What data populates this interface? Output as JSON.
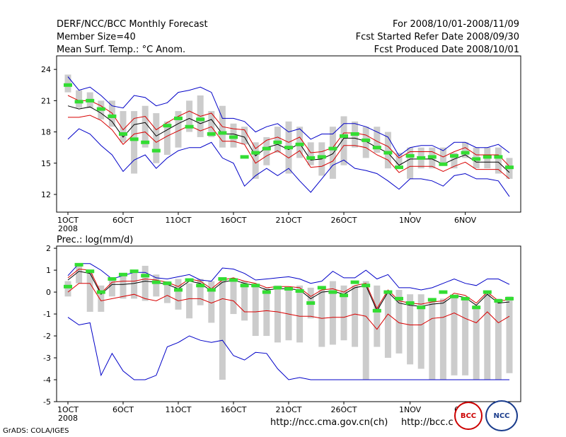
{
  "header": {
    "title": "DERF/NCC/BCC Monthly Forecast",
    "member_size": "Member Size=40",
    "variable": "Mean Surf. Temp.: °C Anom.",
    "period": "For 2008/10/01-2008/11/09",
    "start_date": "Fcst Started Refer Date 2008/09/30",
    "produced_date": "Fcst Produced Date 2008/10/01"
  },
  "colors": {
    "ens_bar": "#cccccc",
    "mean": "#000000",
    "spread": "#d80000",
    "extreme": "#0000c8",
    "median": "#33dd33"
  },
  "footer": {
    "grads": "GrADS: COLA/IGES",
    "url1": "http://ncc.cma.gov.cn(ch)",
    "url2": "http://bcc.c",
    "logo_left": "BCC",
    "logo_right": "NCC"
  },
  "chart_data": [
    {
      "type": "box",
      "name": "temperature",
      "title": "",
      "ylim": [
        10.3,
        25.3
      ],
      "yticks": [
        12,
        15,
        18,
        21,
        24
      ],
      "xlim": [
        1,
        41
      ],
      "xticks": [
        {
          "day": 1,
          "label": "1OCT",
          "sub": "2008"
        },
        {
          "day": 6,
          "label": "6OCT"
        },
        {
          "day": 11,
          "label": "11OCT"
        },
        {
          "day": 16,
          "label": "16OCT"
        },
        {
          "day": 21,
          "label": "21OCT"
        },
        {
          "day": 26,
          "label": "26OCT"
        },
        {
          "day": 32,
          "label": "1NOV"
        },
        {
          "day": 37,
          "label": "6NOV"
        }
      ],
      "series": [
        {
          "name": "bar_low",
          "values": [
            21.8,
            20.3,
            20.3,
            19.2,
            18.5,
            17.0,
            14.0,
            16.5,
            15.0,
            15.8,
            16.5,
            18.0,
            17.5,
            17.5,
            16.5,
            16.5,
            16.8,
            13.5,
            14.8,
            16.0,
            14.0,
            15.5,
            14.8,
            13.8,
            13.5,
            14.8,
            16.5,
            15.5,
            16.0,
            14.5,
            14.8,
            13.5,
            14.5,
            14.5,
            14.8,
            14.5,
            15.5,
            14.5,
            14.5,
            14.0,
            13.5
          ]
        },
        {
          "name": "bar_high",
          "values": [
            23.5,
            22.0,
            21.8,
            21.0,
            21.0,
            20.0,
            20.0,
            20.5,
            19.8,
            19.0,
            20.0,
            21.0,
            21.5,
            20.0,
            20.5,
            18.8,
            18.5,
            17.0,
            17.5,
            18.5,
            19.0,
            18.5,
            17.0,
            17.0,
            18.5,
            19.5,
            19.0,
            18.5,
            18.5,
            18.0,
            16.0,
            16.5,
            16.5,
            16.5,
            16.5,
            16.0,
            17.0,
            16.5,
            16.5,
            16.5,
            15.5
          ]
        },
        {
          "name": "mean",
          "values": [
            20.5,
            20.2,
            20.4,
            19.8,
            19.0,
            17.5,
            18.7,
            18.9,
            17.6,
            18.2,
            18.8,
            19.3,
            18.8,
            19.2,
            17.8,
            17.8,
            17.5,
            15.7,
            16.5,
            16.8,
            16.3,
            16.9,
            15.3,
            15.4,
            15.9,
            17.4,
            17.4,
            17.1,
            16.5,
            16.0,
            14.8,
            15.4,
            15.4,
            15.4,
            14.9,
            15.4,
            15.8,
            15.1,
            15.1,
            15.1,
            14.1
          ]
        },
        {
          "name": "upper",
          "values": [
            21.5,
            21.0,
            21.0,
            20.5,
            19.8,
            18.2,
            19.3,
            19.5,
            18.2,
            18.9,
            19.5,
            20.0,
            19.5,
            19.8,
            18.5,
            18.3,
            18.2,
            16.4,
            17.2,
            17.5,
            17.0,
            17.5,
            16.0,
            16.1,
            16.5,
            17.9,
            17.9,
            17.7,
            17.1,
            16.6,
            15.5,
            16.1,
            16.1,
            16.1,
            15.6,
            16.1,
            16.5,
            15.8,
            15.8,
            15.8,
            14.7
          ]
        },
        {
          "name": "lower",
          "values": [
            19.4,
            19.4,
            19.6,
            19.1,
            18.2,
            16.8,
            17.8,
            18.0,
            17.0,
            17.6,
            18.1,
            18.6,
            18.1,
            18.5,
            17.1,
            17.1,
            16.8,
            15.0,
            15.7,
            16.2,
            15.5,
            16.2,
            14.6,
            14.7,
            15.2,
            16.7,
            16.7,
            16.5,
            15.8,
            15.3,
            14.1,
            14.7,
            14.7,
            14.7,
            14.2,
            14.7,
            15.1,
            14.4,
            14.4,
            14.4,
            13.5
          ]
        },
        {
          "name": "max",
          "values": [
            23.3,
            22.0,
            22.3,
            21.5,
            20.5,
            20.3,
            21.5,
            21.3,
            20.5,
            20.8,
            21.8,
            22.0,
            22.3,
            21.8,
            19.3,
            19.3,
            19.0,
            18.0,
            18.5,
            18.8,
            18.0,
            18.3,
            17.3,
            17.8,
            17.8,
            18.8,
            18.8,
            18.5,
            18.0,
            17.5,
            15.7,
            16.5,
            16.7,
            16.7,
            16.2,
            17.0,
            17.0,
            16.5,
            16.5,
            16.8,
            16.0
          ]
        },
        {
          "name": "min",
          "values": [
            17.3,
            18.3,
            17.8,
            16.7,
            15.8,
            14.2,
            15.3,
            15.8,
            14.5,
            15.5,
            16.2,
            16.5,
            16.5,
            17.0,
            15.5,
            15.0,
            12.8,
            13.8,
            14.5,
            13.8,
            14.5,
            13.3,
            12.2,
            13.5,
            14.8,
            15.3,
            14.5,
            14.3,
            14.0,
            13.3,
            12.5,
            13.5,
            13.5,
            13.3,
            12.8,
            13.8,
            14.0,
            13.5,
            13.5,
            13.3,
            11.8
          ]
        },
        {
          "name": "median",
          "values": [
            22.5,
            20.9,
            21.0,
            20.2,
            19.5,
            17.8,
            17.3,
            17.0,
            16.2,
            18.6,
            19.3,
            18.5,
            19.2,
            17.8,
            17.9,
            17.5,
            15.6,
            16.0,
            16.4,
            17.0,
            16.5,
            16.8,
            15.5,
            15.6,
            16.4,
            17.6,
            17.8,
            17.2,
            16.5,
            16.0,
            14.6,
            15.7,
            15.5,
            15.6,
            14.9,
            15.7,
            16.0,
            15.4,
            15.6,
            15.6,
            14.6
          ]
        }
      ]
    },
    {
      "type": "box",
      "name": "precipitation",
      "title": "Prec.: log(mm/d)",
      "ylim": [
        -5,
        2.1
      ],
      "yticks": [
        -5,
        -4,
        -3,
        -2,
        -1,
        0,
        1,
        2
      ],
      "xlim": [
        1,
        41
      ],
      "xticks": [
        {
          "day": 1,
          "label": "1OCT",
          "sub": "2008"
        },
        {
          "day": 6,
          "label": "6OCT"
        },
        {
          "day": 11,
          "label": "11OCT"
        },
        {
          "day": 16,
          "label": "16OCT"
        },
        {
          "day": 21,
          "label": "21OCT"
        },
        {
          "day": 26,
          "label": "26OCT"
        },
        {
          "day": 32,
          "label": "1NOV"
        },
        {
          "day": 37,
          "label": "6NOV"
        }
      ],
      "series": [
        {
          "name": "bar_low",
          "values": [
            -0.2,
            0.4,
            -0.9,
            -0.9,
            -0.2,
            -0.3,
            -0.3,
            -0.4,
            -0.2,
            -0.5,
            -0.8,
            -1.2,
            -0.6,
            -1.4,
            -4.0,
            -1.0,
            -1.3,
            -2.0,
            -2.0,
            -2.3,
            -2.2,
            -2.3,
            -1.2,
            -2.5,
            -2.4,
            -2.2,
            -2.5,
            -4.0,
            -2.5,
            -3.0,
            -2.8,
            -3.3,
            -3.5,
            -4.0,
            -4.0,
            -3.8,
            -3.8,
            -4.0,
            -4.0,
            -4.0,
            -3.7
          ]
        },
        {
          "name": "bar_high",
          "values": [
            0.5,
            1.3,
            1.0,
            0.3,
            0.6,
            0.8,
            0.9,
            1.2,
            0.8,
            0.5,
            0.6,
            0.4,
            0.6,
            0.5,
            0.6,
            0.6,
            0.5,
            0.3,
            0.2,
            0.3,
            0.2,
            0.3,
            0.2,
            0.1,
            0.5,
            0.3,
            0.3,
            0.5,
            0.3,
            0.0,
            0.1,
            -0.1,
            -0.1,
            -0.3,
            -0.3,
            -0.2,
            -0.3,
            -0.6,
            0.0,
            -0.3,
            -0.2
          ]
        },
        {
          "name": "mean",
          "values": [
            0.55,
            0.95,
            0.85,
            -0.1,
            0.35,
            0.35,
            0.4,
            0.5,
            0.45,
            0.35,
            0.15,
            0.5,
            0.4,
            0.05,
            0.45,
            0.55,
            0.4,
            0.3,
            0.1,
            0.15,
            0.15,
            0.1,
            -0.3,
            0.0,
            0.05,
            -0.1,
            0.2,
            0.3,
            -0.85,
            0.0,
            -0.5,
            -0.6,
            -0.65,
            -0.55,
            -0.5,
            -0.15,
            -0.25,
            -0.6,
            -0.1,
            -0.5,
            -0.45
          ]
        },
        {
          "name": "upper",
          "values": [
            0.65,
            1.05,
            1.0,
            -0.05,
            0.45,
            0.5,
            0.5,
            0.6,
            0.55,
            0.45,
            0.25,
            0.6,
            0.5,
            0.15,
            0.55,
            0.65,
            0.5,
            0.4,
            0.2,
            0.25,
            0.25,
            0.2,
            -0.2,
            0.1,
            0.15,
            0.0,
            0.3,
            0.4,
            -0.75,
            0.1,
            -0.4,
            -0.5,
            -0.55,
            -0.45,
            -0.4,
            -0.05,
            -0.15,
            -0.5,
            0.0,
            -0.4,
            -0.35
          ]
        },
        {
          "name": "lower",
          "values": [
            0.0,
            0.4,
            0.4,
            -0.4,
            -0.3,
            -0.2,
            -0.1,
            -0.3,
            -0.4,
            -0.15,
            -0.4,
            -0.3,
            -0.3,
            -0.5,
            -0.3,
            -0.4,
            -0.9,
            -0.9,
            -0.85,
            -0.9,
            -1.0,
            -1.1,
            -1.1,
            -1.2,
            -1.15,
            -1.15,
            -1.0,
            -1.1,
            -1.7,
            -1.0,
            -1.4,
            -1.5,
            -1.5,
            -1.2,
            -1.15,
            -0.95,
            -1.2,
            -1.4,
            -0.9,
            -1.4,
            -1.1
          ]
        },
        {
          "name": "max",
          "values": [
            0.75,
            1.3,
            1.3,
            1.0,
            0.6,
            0.75,
            0.9,
            0.9,
            0.65,
            0.6,
            0.7,
            0.8,
            0.55,
            0.5,
            1.1,
            1.05,
            0.85,
            0.55,
            0.6,
            0.65,
            0.7,
            0.6,
            0.4,
            0.5,
            0.95,
            0.65,
            0.65,
            1.0,
            0.6,
            0.8,
            0.2,
            0.2,
            0.1,
            0.2,
            0.4,
            0.6,
            0.4,
            0.3,
            0.6,
            0.6,
            0.35
          ]
        },
        {
          "name": "min",
          "values": [
            -1.15,
            -1.5,
            -1.4,
            -3.8,
            -2.8,
            -3.6,
            -4.0,
            -4.0,
            -3.8,
            -2.5,
            -2.3,
            -2.0,
            -2.2,
            -2.3,
            -2.2,
            -2.9,
            -3.1,
            -2.75,
            -2.8,
            -3.5,
            -4.0,
            -3.9,
            -4.0,
            -4.0,
            -4.0,
            -4.0,
            -4.0,
            -4.0,
            -4.0,
            -4.0,
            -4.0,
            -4.0,
            -4.0,
            -4.0,
            -4.0,
            -4.0,
            -4.0,
            -4.0,
            -4.0,
            -4.0,
            -4.0
          ]
        },
        {
          "name": "median",
          "values": [
            0.25,
            1.25,
            0.95,
            0.0,
            0.6,
            0.8,
            0.95,
            0.75,
            0.45,
            0.4,
            0.1,
            0.55,
            0.3,
            0.1,
            0.6,
            0.55,
            0.3,
            0.3,
            0.0,
            0.2,
            0.15,
            0.05,
            -0.5,
            0.2,
            0.0,
            -0.15,
            0.45,
            0.3,
            -0.85,
            0.0,
            -0.3,
            -0.5,
            -0.7,
            -0.35,
            0.0,
            -0.2,
            -0.3,
            -0.7,
            0.0,
            -0.4,
            -0.3
          ]
        }
      ]
    }
  ]
}
